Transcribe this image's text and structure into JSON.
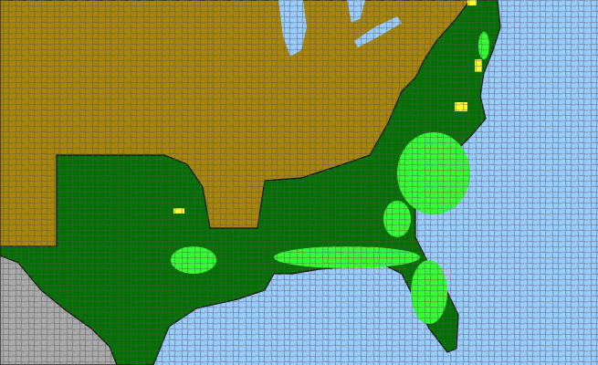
{
  "map": {
    "colors": {
      "ocean": "#99ccff",
      "absent": "#a8860a",
      "present": "#007000",
      "highlight": "#33ff33",
      "rare": "#ffff33",
      "outside": "#aaaaaa",
      "county_lines": "#555555",
      "state_lines": "#111111"
    }
  }
}
